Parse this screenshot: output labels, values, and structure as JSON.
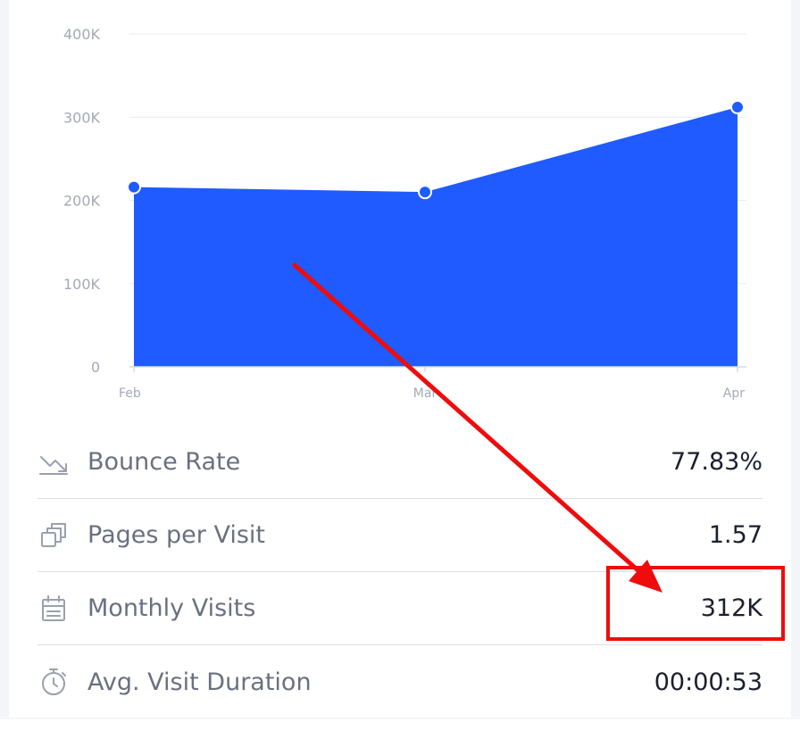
{
  "chart_data": {
    "type": "area",
    "categories": [
      "Feb",
      "Mar",
      "Apr"
    ],
    "series": [
      {
        "values": [
          216000,
          210000,
          312000
        ]
      }
    ],
    "y_ticks": [
      "0",
      "100K",
      "200K",
      "300K",
      "400K"
    ],
    "ylim": [
      0,
      400000
    ],
    "grid": true,
    "colors": {
      "fill": "#1f5bff",
      "point": "#1f5bff",
      "point_stroke": "#ffffff"
    }
  },
  "stats": [
    {
      "label": "Bounce Rate",
      "value": "77.83%",
      "icon": "trend-down-icon"
    },
    {
      "label": "Pages per Visit",
      "value": "1.57",
      "icon": "pages-icon"
    },
    {
      "label": "Monthly Visits",
      "value": "312K",
      "icon": "calendar-icon"
    },
    {
      "label": "Avg. Visit Duration",
      "value": "00:00:53",
      "icon": "stopwatch-icon"
    }
  ],
  "annotation": {
    "color": "#ee0c0c"
  }
}
